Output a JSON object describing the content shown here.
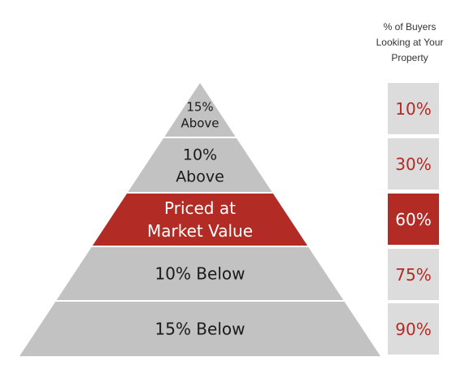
{
  "header": {
    "line1": "% of Buyers",
    "line2": "Looking at Your",
    "line3": "Property"
  },
  "colors": {
    "tier_gray": "#c2c2c2",
    "highlight_red": "#b22b25",
    "box_gray": "#dcdcdc",
    "pct_red": "#b22b25",
    "label_dark": "#1a1a1a",
    "label_light": "#ffffff"
  },
  "tiers": [
    {
      "lines": [
        "15%",
        "Above"
      ],
      "highlight": false
    },
    {
      "lines": [
        "10%",
        "Above"
      ],
      "highlight": false
    },
    {
      "lines": [
        "Priced at",
        "Market Value"
      ],
      "highlight": true
    },
    {
      "lines": [
        "10% Below"
      ],
      "highlight": false
    },
    {
      "lines": [
        "15% Below"
      ],
      "highlight": false
    }
  ],
  "percentages": [
    {
      "value": "10%",
      "highlight": false
    },
    {
      "value": "30%",
      "highlight": false
    },
    {
      "value": "60%",
      "highlight": true
    },
    {
      "value": "75%",
      "highlight": false
    },
    {
      "value": "90%",
      "highlight": false
    }
  ]
}
